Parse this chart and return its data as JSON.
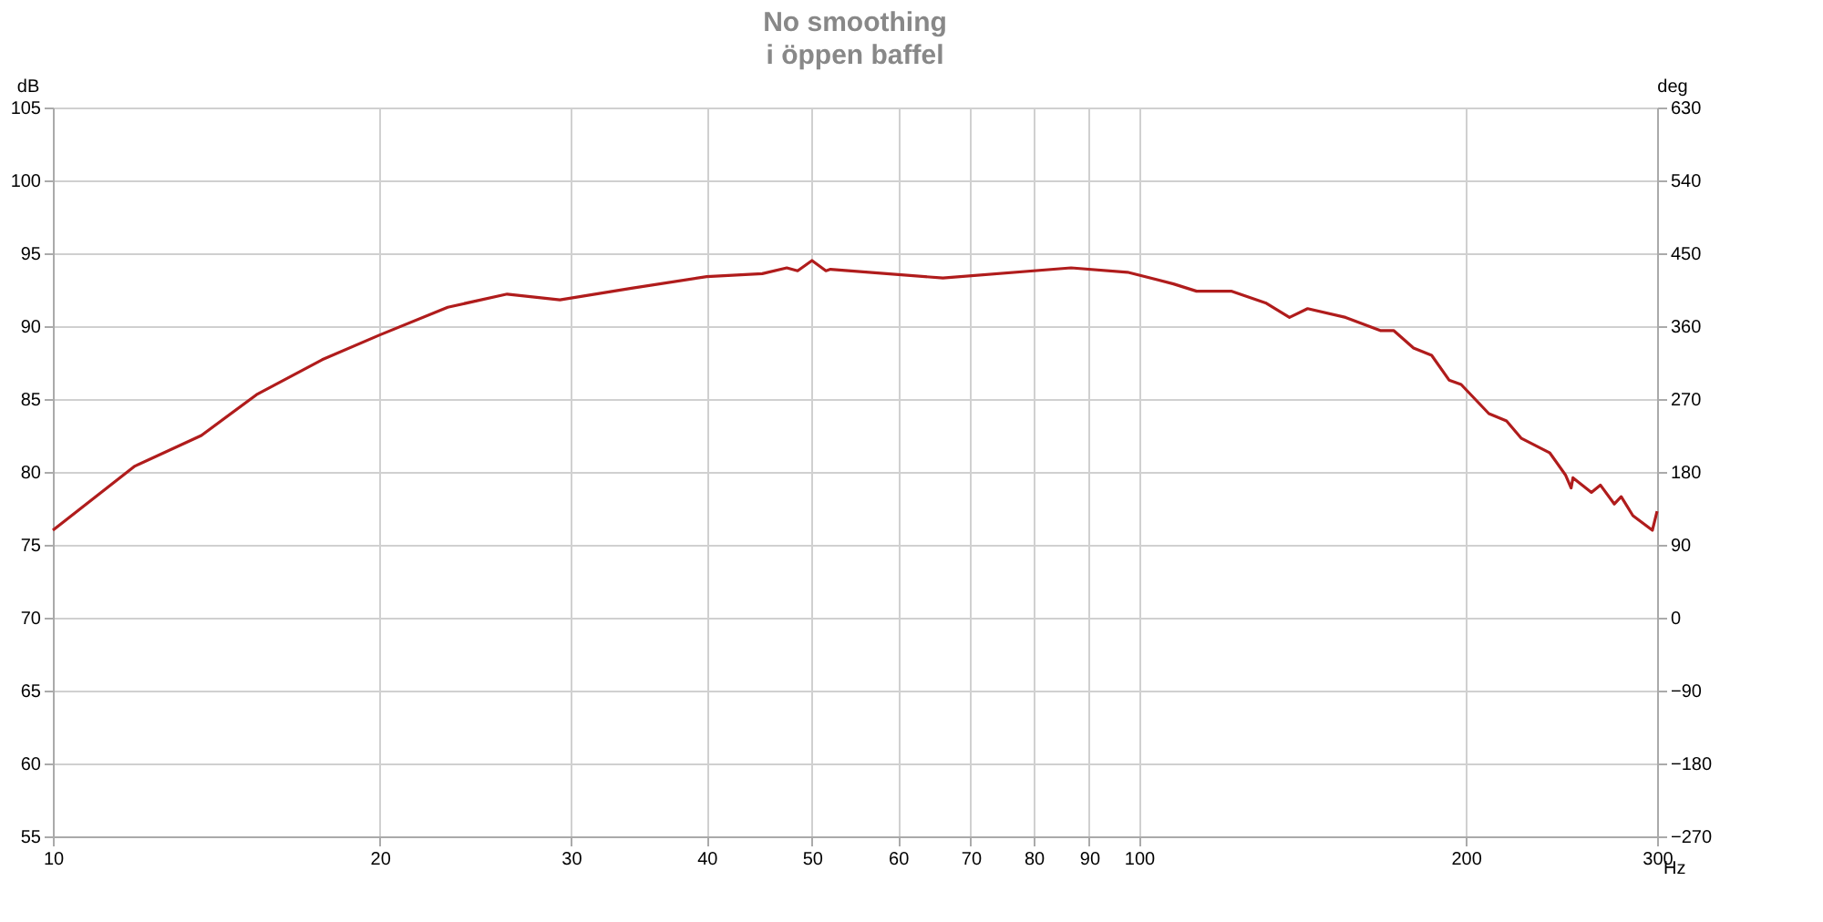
{
  "chart_data": {
    "type": "line",
    "title": "No smoothing",
    "subtitle": "i öppen baffel",
    "xlabel": "Hz",
    "ylabel": "dB",
    "y2label": "deg",
    "log": "x",
    "grid": true,
    "legend": false,
    "marker": "none",
    "line_style": "solid",
    "xlim": [
      10,
      300
    ],
    "xticks": [
      10,
      20,
      30,
      40,
      50,
      60,
      70,
      80,
      90,
      100,
      200,
      300
    ],
    "ylim": [
      55,
      105
    ],
    "yticks": [
      55,
      60,
      65,
      70,
      75,
      80,
      85,
      90,
      95,
      100,
      105
    ],
    "y2lim": [
      -270,
      630
    ],
    "y2ticks": [
      -270,
      -180,
      -90,
      0,
      90,
      180,
      270,
      360,
      450,
      540,
      630
    ],
    "series": [
      {
        "color": "#b01c1c",
        "x": [
          10,
          11.9,
          13.7,
          15.4,
          17.7,
          20,
          23.1,
          26.2,
          29.3,
          34.1,
          40,
          45,
          47.4,
          48.5,
          50,
          51.5,
          52,
          66,
          86.6,
          97.6,
          107.6,
          113,
          121.6,
          130.8,
          137.6,
          143,
          155,
          166.8,
          171.6,
          179,
          186,
          193,
          198,
          210,
          218,
          225,
          239,
          247,
          250,
          251,
          261,
          266,
          274,
          278,
          285,
          297,
          300
        ],
        "values": [
          76.0,
          80.4,
          82.5,
          85.3,
          87.7,
          89.4,
          91.3,
          92.2,
          91.8,
          92.6,
          93.4,
          93.6,
          94.0,
          93.8,
          94.5,
          93.8,
          93.9,
          93.3,
          94.0,
          93.7,
          92.9,
          92.4,
          92.4,
          91.6,
          90.6,
          91.2,
          90.6,
          89.7,
          89.7,
          88.5,
          88.0,
          86.3,
          86.0,
          84.0,
          83.5,
          82.3,
          81.3,
          79.8,
          78.9,
          79.6,
          78.6,
          79.1,
          77.8,
          78.3,
          77.0,
          76.0,
          77.3
        ]
      }
    ]
  }
}
